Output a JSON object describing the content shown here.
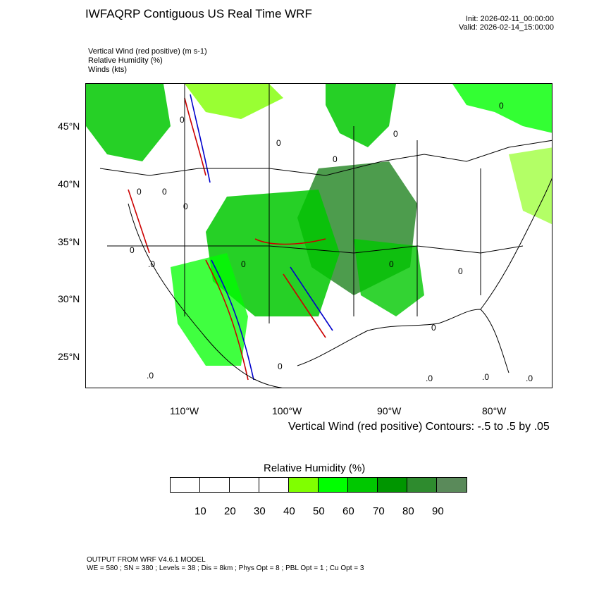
{
  "header": {
    "title": "IWFAQRP Contiguous US Real Time WRF",
    "init": "Init: 2026-02-11_00:00:00",
    "valid": "Valid: 2026-02-14_15:00:00"
  },
  "fields": [
    "Vertical Wind (red positive)   (m s-1)",
    "Relative Humidity   (%)",
    "Winds   (kts)"
  ],
  "map": {
    "lat_labels": [
      "45°N",
      "40°N",
      "35°N",
      "30°N",
      "25°N"
    ],
    "lon_labels": [
      "110°W",
      "100°W",
      "90°W",
      "80°W"
    ],
    "contour_note": "Vertical Wind (red positive) Contours: -.5 to .5 by .05",
    "zero_labels": [
      "0",
      ".0"
    ],
    "colors": {
      "humidity_light": "#80ff00",
      "humidity_mid": "#00c800",
      "humidity_dark": "#2e8b2e",
      "updraft": "#cc0000",
      "downdraft": "#0000cc"
    }
  },
  "colorbar": {
    "title": "Relative Humidity  (%)",
    "labels": [
      "10",
      "20",
      "30",
      "40",
      "50",
      "60",
      "70",
      "80",
      "90"
    ],
    "colors": [
      "#ffffff",
      "#ffffff",
      "#ffffff",
      "#ffffff",
      "#80ff00",
      "#00ff00",
      "#00c800",
      "#009600",
      "#2e8b2e",
      "#5a8a5a"
    ]
  },
  "footer": {
    "line1": "OUTPUT FROM WRF V4.6.1 MODEL",
    "line2": "WE = 580 ; SN = 380 ; Levels = 38 ; Dis = 8km ; Phys Opt = 8 ; PBL Opt = 1 ; Cu Opt = 3"
  }
}
